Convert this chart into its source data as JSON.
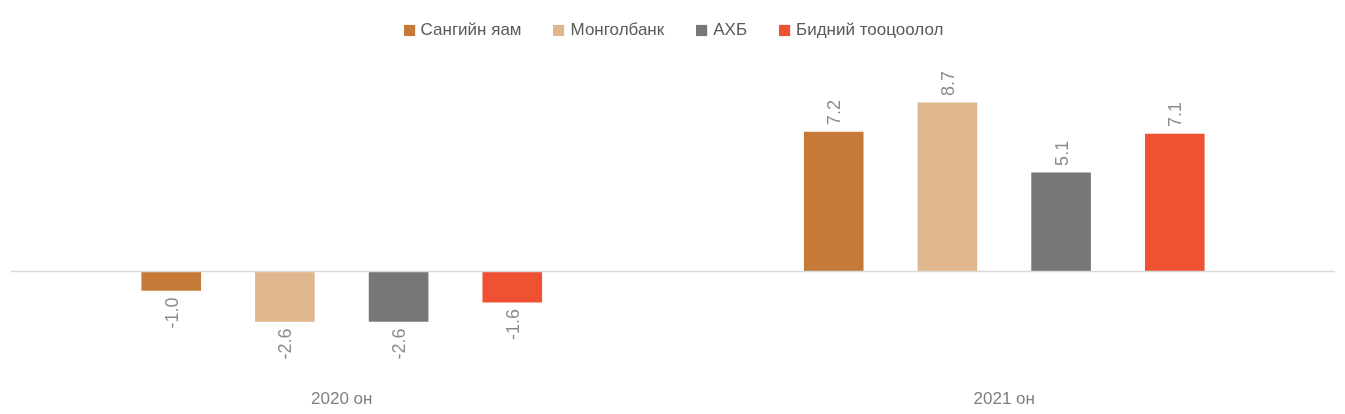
{
  "chart_data": {
    "type": "bar",
    "categories": [
      "2020 он",
      "2021 он"
    ],
    "series": [
      {
        "name": "Сангийн яам",
        "color": "#c57b37",
        "values": [
          -1.0,
          7.2
        ],
        "value_labels": [
          "-1.0",
          "7.2"
        ]
      },
      {
        "name": "Монголбанк",
        "color": "#e0b68d",
        "values": [
          -2.6,
          8.7
        ],
        "value_labels": [
          "-2.6",
          "8.7"
        ]
      },
      {
        "name": "АХБ",
        "color": "#77777a",
        "values": [
          -2.6,
          5.1
        ],
        "value_labels": [
          "-2.6",
          "5.1"
        ]
      },
      {
        "name": "Бидний тооцоолол",
        "color": "#ee5233",
        "values": [
          -1.6,
          7.1
        ],
        "value_labels": [
          "-1.6",
          "7.1"
        ]
      }
    ],
    "legend": "top"
  }
}
